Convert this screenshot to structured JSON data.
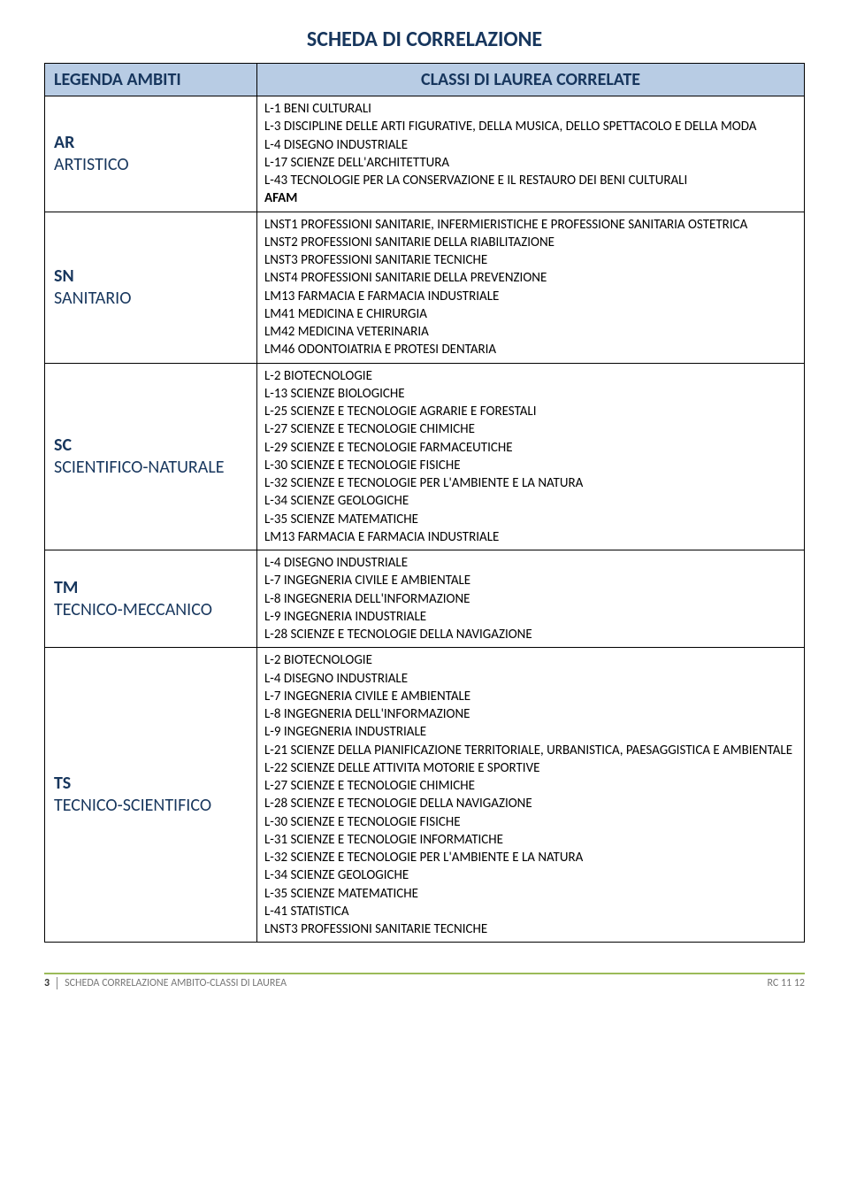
{
  "title": "SCHEDA DI CORRELAZIONE",
  "header": {
    "col1": "LEGENDA AMBITI",
    "col2": "CLASSI DI LAUREA CORRELATE"
  },
  "rows": [
    {
      "code": "AR",
      "name": "ARTISTICO",
      "items": [
        "L-1 BENI CULTURALI",
        "L-3 DISCIPLINE DELLE ARTI FIGURATIVE, DELLA MUSICA, DELLO SPETTACOLO E  DELLA MODA",
        "L-4 DISEGNO INDUSTRIALE",
        "L-17 SCIENZE DELL'ARCHITETTURA",
        "L-43 TECNOLOGIE PER LA CONSERVAZIONE E IL RESTAURO DEI BENI CULTURALI",
        "AFAM"
      ],
      "bold_indices": [
        5
      ]
    },
    {
      "code": "SN",
      "name": "SANITARIO",
      "items": [
        "LNST1  PROFESSIONI SANITARIE, INFERMIERISTICHE E PROFESSIONE SANITARIA OSTETRICA",
        "LNST2  PROFESSIONI SANITARIE DELLA RIABILITAZIONE",
        "LNST3  PROFESSIONI SANITARIE TECNICHE",
        "LNST4  PROFESSIONI SANITARIE DELLA PREVENZIONE",
        "LM13   FARMACIA E FARMACIA INDUSTRIALE",
        "LM41   MEDICINA E CHIRURGIA",
        "LM42   MEDICINA VETERINARIA",
        "LM46  ODONTOIATRIA E PROTESI DENTARIA"
      ],
      "bold_indices": []
    },
    {
      "code": "SC",
      "name": "SCIENTIFICO-NATURALE",
      "items": [
        "L-2 BIOTECNOLOGIE",
        "L-13 SCIENZE BIOLOGICHE",
        "L-25 SCIENZE E TECNOLOGIE AGRARIE E FORESTALI",
        "L-27 SCIENZE E TECNOLOGIE CHIMICHE",
        "L-29 SCIENZE E TECNOLOGIE FARMACEUTICHE",
        "L-30 SCIENZE E TECNOLOGIE FISICHE",
        "L-32 SCIENZE E TECNOLOGIE PER L'AMBIENTE E LA NATURA",
        "L-34 SCIENZE GEOLOGICHE",
        "L-35 SCIENZE MATEMATICHE",
        "LM13  FARMACIA E FARMACIA INDUSTRIALE"
      ],
      "bold_indices": []
    },
    {
      "code": "TM",
      "name": "TECNICO-MECCANICO",
      "items": [
        "L-4 DISEGNO INDUSTRIALE",
        "L-7 INGEGNERIA CIVILE E AMBIENTALE",
        "L-8 INGEGNERIA DELL'INFORMAZIONE",
        "L-9 INGEGNERIA INDUSTRIALE",
        "L-28 SCIENZE E TECNOLOGIE DELLA NAVIGAZIONE"
      ],
      "bold_indices": []
    },
    {
      "code": "TS",
      "name": "TECNICO-SCIENTIFICO",
      "items": [
        "L-2 BIOTECNOLOGIE",
        "L-4 DISEGNO INDUSTRIALE",
        "L-7 INGEGNERIA CIVILE E AMBIENTALE",
        "L-8 INGEGNERIA DELL'INFORMAZIONE",
        "L-9 INGEGNERIA INDUSTRIALE",
        "L-21 SCIENZE DELLA PIANIFICAZIONE TERRITORIALE, URBANISTICA, PAESAGGISTICA E AMBIENTALE",
        "L-22 SCIENZE DELLE ATTIVITA MOTORIE E SPORTIVE",
        "L-27 SCIENZE E TECNOLOGIE CHIMICHE",
        "L-28 SCIENZE E TECNOLOGIE DELLA NAVIGAZIONE",
        "L-30 SCIENZE E TECNOLOGIE FISICHE",
        "L-31 SCIENZE E TECNOLOGIE INFORMATICHE",
        "L-32 SCIENZE E TECNOLOGIE PER L'AMBIENTE E LA NATURA",
        "L-34 SCIENZE GEOLOGICHE",
        "L-35 SCIENZE MATEMATICHE",
        "L-41 STATISTICA",
        "LNST3  PROFESSIONI SANITARIE TECNICHE"
      ],
      "bold_indices": []
    }
  ],
  "footer": {
    "page_num": "3",
    "left_text": "SCHEDA CORRELAZIONE AMBITO-CLASSI DI LAUREA",
    "right_text": "RC 11 12"
  },
  "colors": {
    "header_bg": "#b8cce4",
    "heading_text": "#17365d",
    "footer_line": "#9bbb59"
  }
}
